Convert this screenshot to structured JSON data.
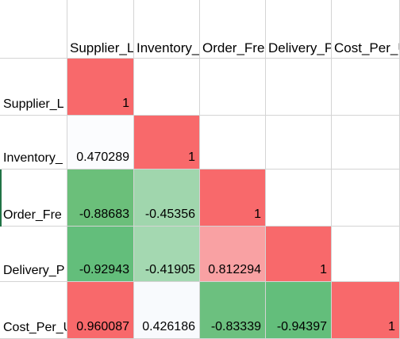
{
  "headers": [
    "Supplier_L",
    "Inventory_",
    "Order_Fre",
    "Delivery_P",
    "Cost_Per_U"
  ],
  "row_labels": [
    "Supplier_L",
    "Inventory_",
    "Order_Fre",
    "Delivery_P",
    "Cost_Per_U"
  ],
  "values": [
    [
      "1",
      "",
      "",
      "",
      ""
    ],
    [
      "0.470289",
      "1",
      "",
      "",
      ""
    ],
    [
      "-0.88683",
      "-0.45356",
      "1",
      "",
      ""
    ],
    [
      "-0.92943",
      "-0.41905",
      "0.812294",
      "1",
      ""
    ],
    [
      "0.960087",
      "0.426186",
      "-0.83339",
      "-0.94397",
      "1"
    ]
  ],
  "fills": [
    [
      "#f8696b",
      "",
      "",
      "",
      ""
    ],
    [
      "#fbfcfe",
      "#f8696b",
      "",
      "",
      ""
    ],
    [
      "#6bbf7a",
      "#a0d6ad",
      "#f8696b",
      "",
      ""
    ],
    [
      "#63be7b",
      "#a4d8b1",
      "#f9a1a3",
      "#f8696b",
      ""
    ],
    [
      "#f8696b",
      "#f8fafd",
      "#6cc07f",
      "#63be7b",
      "#f8696b"
    ]
  ]
}
